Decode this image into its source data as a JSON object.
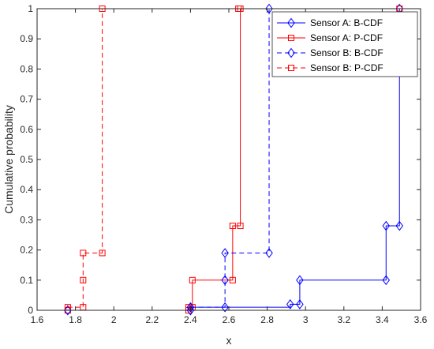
{
  "chart_data": {
    "type": "line",
    "title": "",
    "xlabel": "x",
    "ylabel": "Cumulative probability",
    "xlim": [
      1.6,
      3.6
    ],
    "ylim": [
      0,
      1
    ],
    "xticks": [
      "1.6",
      "1.8",
      "2",
      "2.2",
      "2.4",
      "2.6",
      "2.8",
      "3",
      "3.2",
      "3.4",
      "3.6"
    ],
    "yticks": [
      "0",
      "0.1",
      "0.2",
      "0.3",
      "0.4",
      "0.5",
      "0.6",
      "0.7",
      "0.8",
      "0.9",
      "1"
    ],
    "grid": false,
    "legend_position": "top-right",
    "series": [
      {
        "name": "Sensor A: B-CDF",
        "color": "#0000ff",
        "line_style": "solid",
        "marker": "diamond",
        "x": [
          1.76,
          2.4,
          2.92,
          2.97,
          3.42,
          3.49
        ],
        "y": [
          0,
          0.01,
          0.02,
          0.1,
          0.28,
          1
        ]
      },
      {
        "name": "Sensor A: P-CDF",
        "color": "#ff0000",
        "line_style": "solid",
        "marker": "square",
        "x": [
          1.76,
          2.39,
          2.41,
          2.62,
          2.66,
          3.49
        ],
        "y": [
          0,
          0.01,
          0.1,
          0.28,
          1,
          1
        ]
      },
      {
        "name": "Sensor B: B-CDF",
        "color": "#0000ff",
        "line_style": "dashed",
        "marker": "diamond",
        "x": [
          1.76,
          2.4,
          2.58,
          2.81,
          2.81
        ],
        "y": [
          0,
          0.01,
          0.19,
          1,
          1
        ]
      },
      {
        "name": "Sensor B: P-CDF",
        "color": "#ff0000",
        "line_style": "dashed",
        "marker": "square",
        "x": [
          1.76,
          1.84,
          1.94,
          2.65
        ],
        "y": [
          0.01,
          0.19,
          1,
          1
        ]
      }
    ],
    "stairs": [
      {
        "series": 0,
        "points": [
          [
            1.76,
            0
          ],
          [
            2.4,
            0
          ],
          [
            2.4,
            0.01
          ],
          [
            2.92,
            0.01
          ],
          [
            2.92,
            0.02
          ],
          [
            2.97,
            0.02
          ],
          [
            2.97,
            0.1
          ],
          [
            3.42,
            0.1
          ],
          [
            3.42,
            0.28
          ],
          [
            3.49,
            0.28
          ],
          [
            3.49,
            1
          ]
        ],
        "markers": [
          [
            1.76,
            0
          ],
          [
            2.4,
            0
          ],
          [
            2.4,
            0.01
          ],
          [
            2.92,
            0.02
          ],
          [
            2.97,
            0.02
          ],
          [
            2.97,
            0.1
          ],
          [
            3.42,
            0.1
          ],
          [
            3.42,
            0.28
          ],
          [
            3.49,
            0.28
          ],
          [
            3.49,
            1
          ]
        ]
      },
      {
        "series": 1,
        "points": [
          [
            1.76,
            0
          ],
          [
            2.39,
            0
          ],
          [
            2.39,
            0.01
          ],
          [
            2.41,
            0.01
          ],
          [
            2.41,
            0.1
          ],
          [
            2.62,
            0.1
          ],
          [
            2.62,
            0.28
          ],
          [
            2.66,
            0.28
          ],
          [
            2.66,
            1
          ],
          [
            3.49,
            1
          ]
        ],
        "markers": [
          [
            1.76,
            0
          ],
          [
            2.39,
            0
          ],
          [
            2.39,
            0.01
          ],
          [
            2.41,
            0.01
          ],
          [
            2.41,
            0.1
          ],
          [
            2.62,
            0.1
          ],
          [
            2.62,
            0.28
          ],
          [
            2.66,
            0.28
          ],
          [
            2.66,
            1
          ],
          [
            3.49,
            1
          ]
        ]
      },
      {
        "series": 2,
        "points": [
          [
            1.76,
            0
          ],
          [
            2.4,
            0
          ],
          [
            2.4,
            0.01
          ],
          [
            2.58,
            0.01
          ],
          [
            2.58,
            0.19
          ],
          [
            2.81,
            0.19
          ],
          [
            2.81,
            1
          ]
        ],
        "markers": [
          [
            1.76,
            0
          ],
          [
            2.4,
            0
          ],
          [
            2.4,
            0.01
          ],
          [
            2.58,
            0.01
          ],
          [
            2.58,
            0.1
          ],
          [
            2.58,
            0.19
          ],
          [
            2.81,
            0.19
          ],
          [
            2.81,
            1
          ]
        ]
      },
      {
        "series": 3,
        "points": [
          [
            1.76,
            0.01
          ],
          [
            1.84,
            0.01
          ],
          [
            1.84,
            0.19
          ],
          [
            1.94,
            0.19
          ],
          [
            1.94,
            1
          ],
          [
            2.65,
            1
          ]
        ],
        "markers": [
          [
            1.76,
            0.01
          ],
          [
            1.84,
            0.01
          ],
          [
            1.84,
            0.1
          ],
          [
            1.84,
            0.19
          ],
          [
            1.94,
            0.19
          ],
          [
            1.94,
            1
          ],
          [
            2.65,
            1
          ]
        ]
      }
    ]
  }
}
